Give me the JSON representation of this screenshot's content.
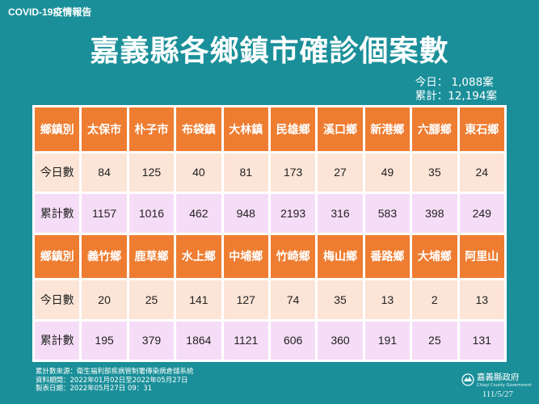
{
  "tag": "COVID-19疫情報告",
  "title": "嘉義縣各鄉鎮市確診個案數",
  "summary": {
    "today": "今日： 1,088案",
    "total": "累計：12,194案"
  },
  "labels": {
    "region": "鄉鎮別",
    "today": "今日數",
    "total": "累計數"
  },
  "groups": [
    {
      "towns": [
        "太保市",
        "朴子市",
        "布袋鎮",
        "大林鎮",
        "民雄鄉",
        "溪口鄉",
        "新港鄉",
        "六腳鄉",
        "東石鄉"
      ],
      "today": [
        "84",
        "125",
        "40",
        "81",
        "173",
        "27",
        "49",
        "35",
        "24"
      ],
      "total": [
        "1157",
        "1016",
        "462",
        "948",
        "2193",
        "316",
        "583",
        "398",
        "249"
      ]
    },
    {
      "towns": [
        "義竹鄉",
        "鹿草鄉",
        "水上鄉",
        "中埔鄉",
        "竹崎鄉",
        "梅山鄉",
        "番路鄉",
        "大埔鄉",
        "阿里山"
      ],
      "today": [
        "20",
        "25",
        "141",
        "127",
        "74",
        "35",
        "13",
        "2",
        "13"
      ],
      "total": [
        "195",
        "379",
        "1864",
        "1121",
        "606",
        "360",
        "191",
        "25",
        "131"
      ]
    }
  ],
  "footer": {
    "source": "累計數來源：衛生福利部疾病管制署傳染病倉儲系統",
    "period": "資料期間：2022年01月02日至2022年05月27日",
    "made": "製表日期：2022年05月27日 09：31"
  },
  "logo": {
    "name": "嘉義縣政府",
    "sub": "Chiayi County Government",
    "icon": "county-emblem-icon"
  },
  "date": "111/5/27"
}
